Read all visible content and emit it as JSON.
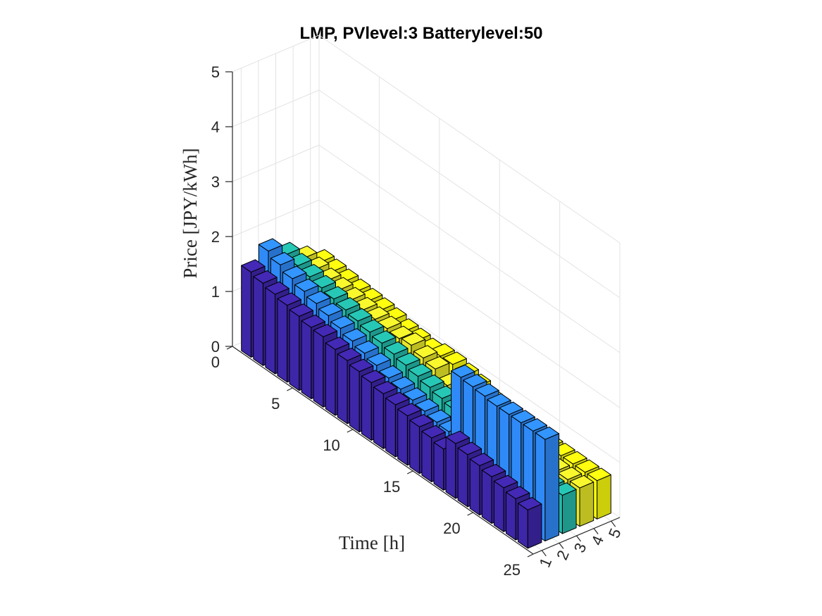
{
  "chart_data": {
    "type": "bar3",
    "title": "LMP, PVlevel:3 Batterylevel:50",
    "xlabel": "Time [h]",
    "ylabel": "",
    "zlabel": "Price [JPY/kWh]",
    "time_ticks": [
      "0",
      "5",
      "10",
      "15",
      "20",
      "25"
    ],
    "time_range": [
      0,
      25
    ],
    "node_ticks": [
      "1",
      "2",
      "3",
      "4",
      "5"
    ],
    "node_range": [
      0.5,
      5.5
    ],
    "z_ticks": [
      "0",
      "1",
      "2",
      "3",
      "4",
      "5"
    ],
    "z_range": [
      0,
      5
    ],
    "grid": true,
    "time": [
      1,
      2,
      3,
      4,
      5,
      6,
      7,
      8,
      9,
      10,
      11,
      12,
      13,
      14,
      15,
      16,
      17,
      18,
      19,
      20,
      21,
      22,
      23,
      24
    ],
    "series": [
      {
        "node": 1,
        "color": "#3e26a8",
        "values": [
          1.55,
          1.5,
          1.45,
          1.4,
          1.35,
          1.3,
          1.28,
          1.2,
          1.15,
          1.1,
          1.05,
          1.0,
          0.95,
          0.9,
          0.85,
          0.8,
          0.75,
          1.0,
          0.95,
          0.9,
          0.85,
          0.8,
          0.75,
          0.7
        ]
      },
      {
        "node": 2,
        "color": "#2f8af7",
        "values": [
          1.8,
          1.7,
          1.6,
          1.52,
          1.45,
          1.38,
          1.3,
          1.22,
          1.15,
          1.08,
          1.0,
          0.95,
          0.9,
          0.85,
          0.8,
          0.78,
          1.92,
          1.9,
          1.88,
          1.85,
          1.85,
          1.85,
          1.85,
          1.85
        ]
      },
      {
        "node": 3,
        "color": "#24b8a8",
        "values": [
          1.6,
          1.55,
          1.5,
          1.45,
          1.4,
          1.35,
          1.3,
          1.25,
          1.2,
          1.15,
          1.1,
          1.05,
          1.0,
          0.95,
          0.9,
          0.85,
          0.8,
          0.75,
          0.7,
          0.7,
          0.7,
          0.7,
          0.7,
          0.7
        ]
      },
      {
        "node": 4,
        "color": "#e6e62a",
        "values": [
          1.4,
          1.35,
          1.3,
          1.28,
          1.25,
          1.22,
          1.2,
          1.18,
          1.15,
          1.18,
          1.1,
          1.05,
          0.9,
          0.8,
          0.75,
          0.7,
          0.7,
          0.7,
          0.7,
          0.7,
          0.7,
          0.7,
          0.7,
          0.7
        ]
      },
      {
        "node": 5,
        "color": "#f9fb0e",
        "values": [
          1.2,
          1.18,
          1.15,
          1.12,
          1.1,
          1.08,
          1.05,
          1.0,
          0.98,
          0.95,
          1.0,
          1.0,
          0.95,
          0.9,
          0.8,
          0.75,
          0.7,
          0.7,
          0.7,
          0.7,
          0.7,
          0.7,
          0.7,
          0.7
        ]
      }
    ]
  }
}
